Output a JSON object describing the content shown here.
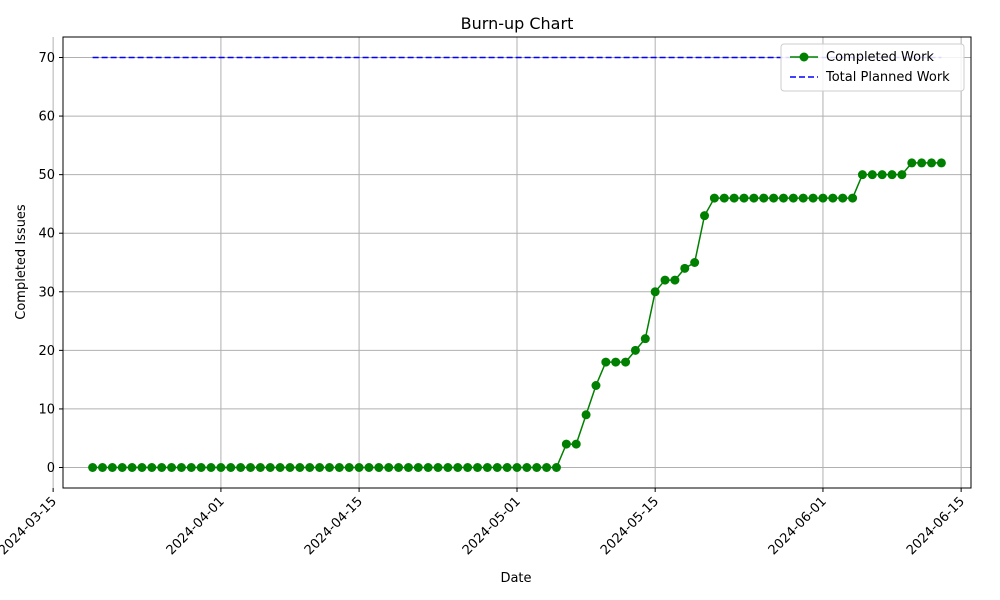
{
  "chart_data": {
    "type": "line",
    "title": "Burn-up Chart",
    "xlabel": "Date",
    "ylabel": "Completed Issues",
    "x_start": "2024-03-19",
    "x_end": "2024-06-13",
    "xlim": [
      "2024-03-16",
      "2024-06-16"
    ],
    "ylim": [
      -3.5,
      73.5
    ],
    "yticks": [
      0,
      10,
      20,
      30,
      40,
      50,
      60,
      70
    ],
    "xticks": [
      "2024-03-15",
      "2024-04-01",
      "2024-04-15",
      "2024-05-01",
      "2024-05-15",
      "2024-06-01",
      "2024-06-15"
    ],
    "grid": true,
    "legend_position": "top-right",
    "series": [
      {
        "name": "Completed Work",
        "color": "#008000",
        "style": "solid-with-circle-markers",
        "values": [
          0,
          0,
          0,
          0,
          0,
          0,
          0,
          0,
          0,
          0,
          0,
          0,
          0,
          0,
          0,
          0,
          0,
          0,
          0,
          0,
          0,
          0,
          0,
          0,
          0,
          0,
          0,
          0,
          0,
          0,
          0,
          0,
          0,
          0,
          0,
          0,
          0,
          0,
          0,
          0,
          0,
          0,
          0,
          0,
          0,
          0,
          0,
          0,
          4,
          4,
          9,
          14,
          18,
          18,
          18,
          20,
          22,
          30,
          32,
          32,
          34,
          35,
          43,
          46,
          46,
          46,
          46,
          46,
          46,
          46,
          46,
          46,
          46,
          46,
          46,
          46,
          46,
          46,
          50,
          50,
          50,
          50,
          50,
          52,
          52,
          52,
          52
        ]
      },
      {
        "name": "Total Planned Work",
        "color": "#0000ff",
        "style": "dashed",
        "values": [
          70,
          70
        ]
      }
    ]
  }
}
